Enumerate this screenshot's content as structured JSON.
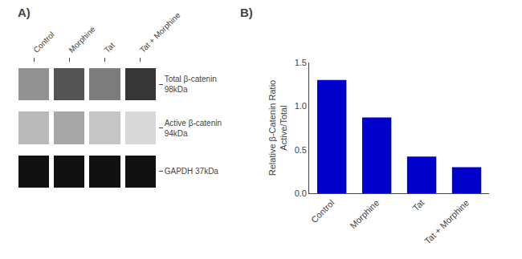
{
  "chart_data": [
    {
      "type": "heatmap",
      "title": "A)",
      "x": [
        "Control",
        "Morphine",
        "Tat",
        "Tat + Morphine"
      ],
      "y": [
        "Total β-catenin\n98kDa",
        "Active β-catenin\n94kDa",
        "GAPDH 37kDa"
      ],
      "values": [
        [
          0.55,
          0.75,
          0.62,
          0.85
        ],
        [
          0.42,
          0.48,
          0.38,
          0.32
        ],
        [
          0.97,
          0.97,
          0.97,
          0.97
        ]
      ]
    },
    {
      "type": "bar",
      "title": "B)",
      "categories": [
        "Control",
        "Morphine",
        "Tat",
        "Tat + Morphine"
      ],
      "values": [
        1.3,
        0.87,
        0.42,
        0.3
      ],
      "color": "#0000CC",
      "ylabel": "Relative β-Catenin Ratio\nActive/Total",
      "ylim": [
        0,
        1.5
      ],
      "yticks": [
        {
          "value": 0,
          "label": "0.0"
        },
        0.5,
        {
          "value": 1,
          "label": "1.0"
        },
        1.5
      ],
      "grid": false
    }
  ]
}
